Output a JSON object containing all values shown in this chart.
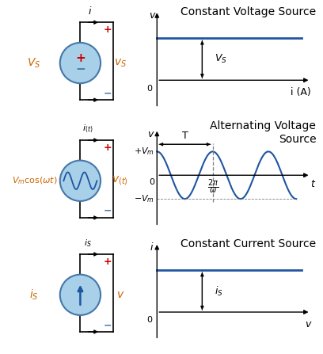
{
  "bg_color": "#ffffff",
  "title1": "Constant Voltage Source",
  "title2_line1": "Alternating Voltage",
  "title2_line2": "Source",
  "title3": "Constant Current Source",
  "circle_color": "#a8d0e8",
  "line_color": "#2055a0",
  "axis_color": "#000000",
  "red_color": "#cc0000",
  "orange_color": "#cc6600",
  "font_size": 9,
  "title_font_size": 10,
  "circ_edge_color": "#4477aa"
}
